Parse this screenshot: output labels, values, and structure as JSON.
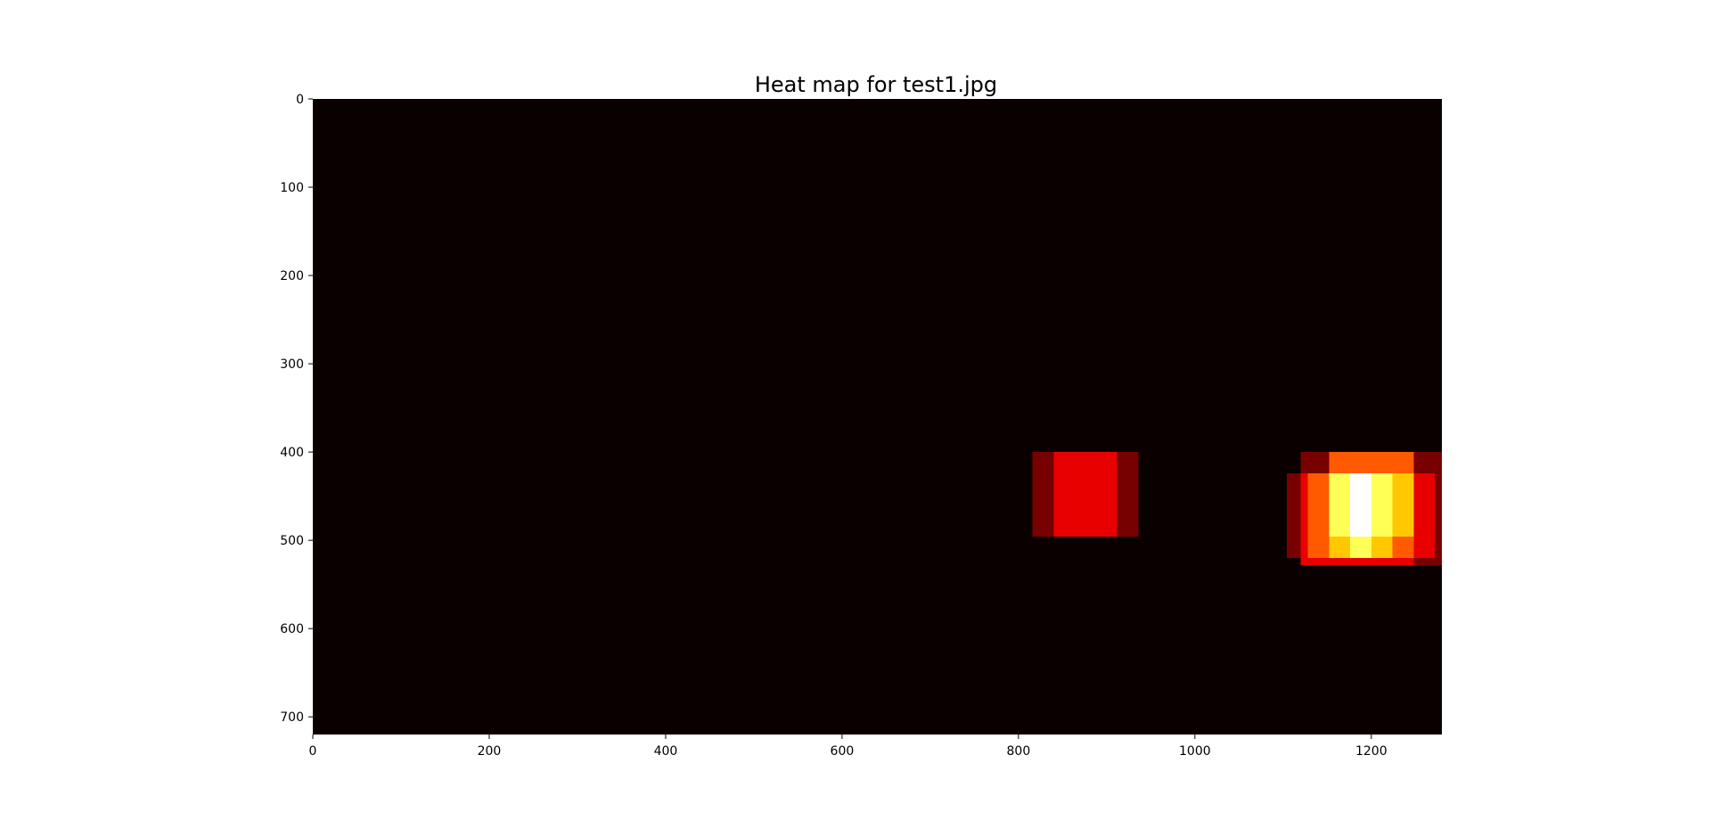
{
  "chart_data": {
    "type": "heatmap",
    "title": "Heat map for test1.jpg",
    "colormap": "hot",
    "xlim": [
      0,
      1280
    ],
    "ylim": [
      720,
      0
    ],
    "x_ticks": [
      "0",
      "200",
      "400",
      "600",
      "800",
      "1000",
      "1200"
    ],
    "y_ticks": [
      "0",
      "100",
      "200",
      "300",
      "400",
      "500",
      "600",
      "700"
    ],
    "background_color": "#0a0000",
    "heat_levels": {
      "1": "#770000",
      "2": "#e80000",
      "3": "#ff5a00",
      "4": "#ffc800",
      "5": "#ffff55",
      "6": "#ffffff"
    },
    "regions": [
      {
        "x0": 816,
        "x1": 840,
        "y0": 400,
        "y1": 496,
        "level": 1
      },
      {
        "x0": 840,
        "x1": 912,
        "y0": 400,
        "y1": 496,
        "level": 2
      },
      {
        "x0": 912,
        "x1": 936,
        "y0": 400,
        "y1": 496,
        "level": 1
      },
      {
        "x0": 1120,
        "x1": 1152,
        "y0": 400,
        "y1": 424,
        "level": 1
      },
      {
        "x0": 1152,
        "x1": 1248,
        "y0": 400,
        "y1": 424,
        "level": 3
      },
      {
        "x0": 1248,
        "x1": 1280,
        "y0": 400,
        "y1": 424,
        "level": 1
      },
      {
        "x0": 1104,
        "x1": 1120,
        "y0": 424,
        "y1": 520,
        "level": 1
      },
      {
        "x0": 1120,
        "x1": 1128,
        "y0": 424,
        "y1": 520,
        "level": 2
      },
      {
        "x0": 1128,
        "x1": 1152,
        "y0": 424,
        "y1": 520,
        "level": 3
      },
      {
        "x0": 1152,
        "x1": 1176,
        "y0": 424,
        "y1": 496,
        "level": 5
      },
      {
        "x0": 1176,
        "x1": 1200,
        "y0": 424,
        "y1": 496,
        "level": 6
      },
      {
        "x0": 1200,
        "x1": 1224,
        "y0": 424,
        "y1": 496,
        "level": 5
      },
      {
        "x0": 1224,
        "x1": 1248,
        "y0": 424,
        "y1": 496,
        "level": 4
      },
      {
        "x0": 1152,
        "x1": 1176,
        "y0": 496,
        "y1": 520,
        "level": 4
      },
      {
        "x0": 1176,
        "x1": 1200,
        "y0": 496,
        "y1": 520,
        "level": 5
      },
      {
        "x0": 1200,
        "x1": 1224,
        "y0": 496,
        "y1": 520,
        "level": 4
      },
      {
        "x0": 1224,
        "x1": 1248,
        "y0": 496,
        "y1": 520,
        "level": 3
      },
      {
        "x0": 1248,
        "x1": 1272,
        "y0": 424,
        "y1": 520,
        "level": 2
      },
      {
        "x0": 1272,
        "x1": 1280,
        "y0": 424,
        "y1": 528,
        "level": 1
      },
      {
        "x0": 1120,
        "x1": 1248,
        "y0": 520,
        "y1": 528,
        "level": 2
      },
      {
        "x0": 1248,
        "x1": 1272,
        "y0": 520,
        "y1": 528,
        "level": 1
      }
    ]
  }
}
